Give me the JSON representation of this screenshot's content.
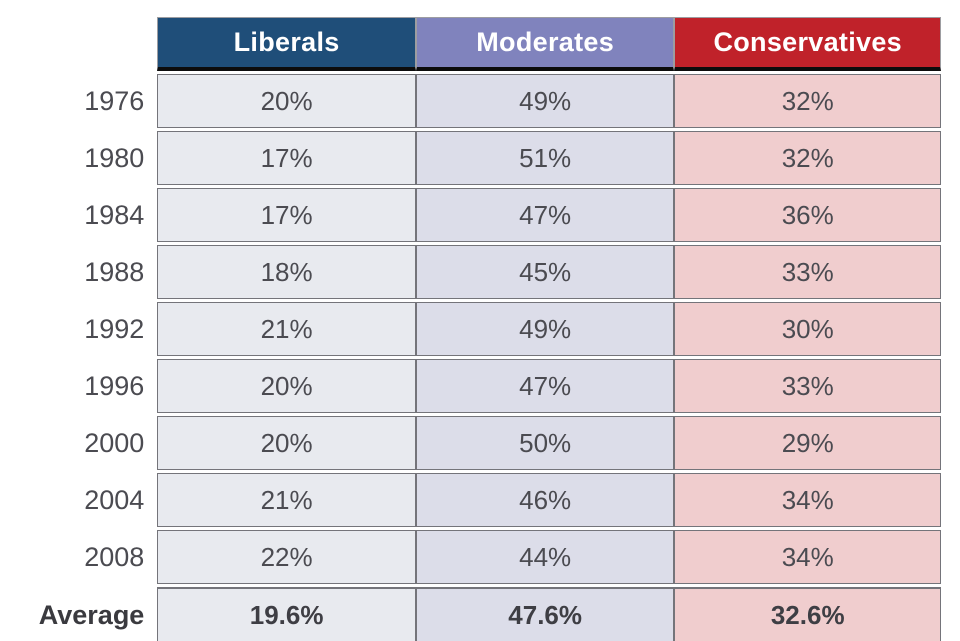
{
  "colors": {
    "liberals_header": "#1F4E79",
    "moderates_header": "#8083BD",
    "conservatives_header": "#C0222A",
    "liberals_cell": "#E8EAEF",
    "moderates_cell": "#DCDDE9",
    "conservatives_cell": "#F0CDCE",
    "header_text": "#FFFFFF",
    "cell_text": "#4B4B51",
    "grid_border": "#74747A",
    "header_divider": "#0C0C0C"
  },
  "chart_data": {
    "type": "table",
    "columns": [
      "Liberals",
      "Moderates",
      "Conservatives"
    ],
    "rows": [
      {
        "label": "1976",
        "values": [
          "20%",
          "49%",
          "32%"
        ]
      },
      {
        "label": "1980",
        "values": [
          "17%",
          "51%",
          "32%"
        ]
      },
      {
        "label": "1984",
        "values": [
          "17%",
          "47%",
          "36%"
        ]
      },
      {
        "label": "1988",
        "values": [
          "18%",
          "45%",
          "33%"
        ]
      },
      {
        "label": "1992",
        "values": [
          "21%",
          "49%",
          "30%"
        ]
      },
      {
        "label": "1996",
        "values": [
          "20%",
          "47%",
          "33%"
        ]
      },
      {
        "label": "2000",
        "values": [
          "20%",
          "50%",
          "29%"
        ]
      },
      {
        "label": "2004",
        "values": [
          "21%",
          "46%",
          "34%"
        ]
      },
      {
        "label": "2008",
        "values": [
          "22%",
          "44%",
          "34%"
        ]
      },
      {
        "label": "Average",
        "values": [
          "19.6%",
          "47.6%",
          "32.6%"
        ]
      }
    ]
  }
}
